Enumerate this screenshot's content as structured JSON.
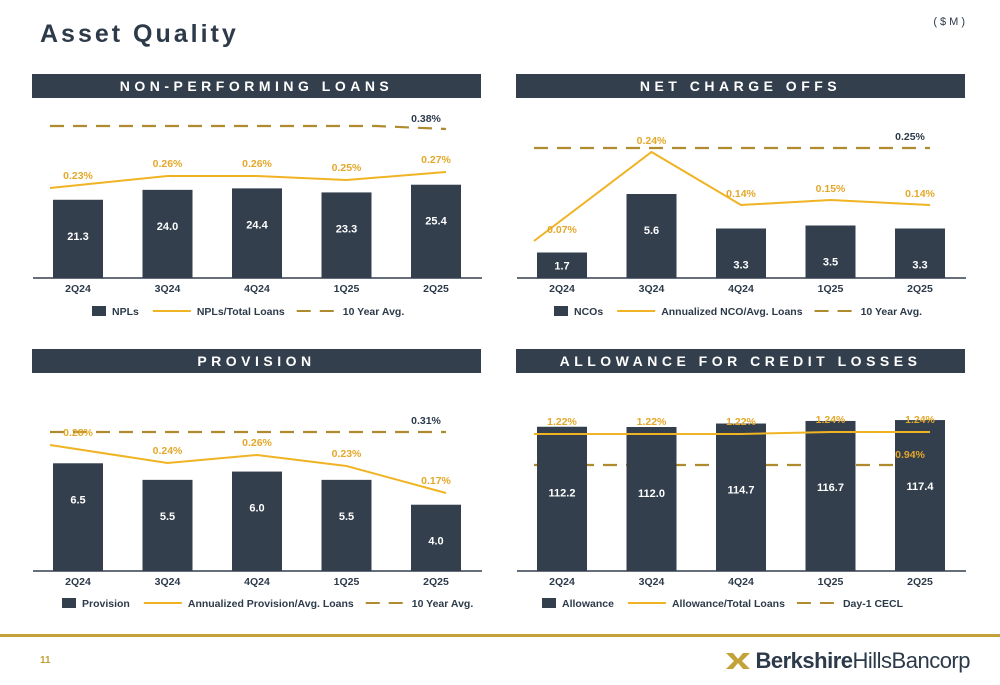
{
  "page": {
    "title": "Asset Quality",
    "units": "($M)",
    "page_number": "11",
    "logo": {
      "bold": "Berkshire",
      "regular": "HillsBancorp"
    }
  },
  "colors": {
    "bar": "#333f4d",
    "line": "#f0b323",
    "dash": "#b08a2e",
    "label_gold": "#e3a82b",
    "text": "#2c3a4a"
  },
  "chart_data": [
    {
      "id": "npl",
      "title": "NON-PERFORMING LOANS",
      "type": "bar+line",
      "categories": [
        "2Q24",
        "3Q24",
        "4Q24",
        "1Q25",
        "2Q25"
      ],
      "bars": {
        "name": "NPLs",
        "values": [
          21.3,
          24.0,
          24.4,
          23.3,
          25.4
        ]
      },
      "line": {
        "name": "NPLs/Total Loans",
        "values": [
          0.23,
          0.26,
          0.26,
          0.25,
          0.27
        ],
        "labels": [
          "0.23%",
          "0.26%",
          "0.26%",
          "0.25%",
          "0.27%"
        ]
      },
      "dashed": {
        "name": "10 Year Avg.",
        "value": 0.38,
        "label": "0.38%"
      },
      "legend": [
        "NPLs",
        "NPLs/Total Loans",
        "10 Year Avg."
      ]
    },
    {
      "id": "nco",
      "title": "NET CHARGE OFFS",
      "type": "bar+line",
      "categories": [
        "2Q24",
        "3Q24",
        "4Q24",
        "1Q25",
        "2Q25"
      ],
      "bars": {
        "name": "NCOs",
        "values": [
          1.7,
          5.6,
          3.3,
          3.5,
          3.3
        ]
      },
      "line": {
        "name": "Annualized NCO/Avg. Loans",
        "values": [
          0.07,
          0.24,
          0.14,
          0.15,
          0.14
        ],
        "labels": [
          "0.07%",
          "0.24%",
          "0.14%",
          "0.15%",
          "0.14%"
        ]
      },
      "dashed": {
        "name": "10 Year Avg.",
        "value": 0.25,
        "label": "0.25%"
      },
      "legend": [
        "NCOs",
        "Annualized NCO/Avg. Loans",
        "10 Year Avg."
      ]
    },
    {
      "id": "provision",
      "title": "PROVISION",
      "type": "bar+line",
      "categories": [
        "2Q24",
        "3Q24",
        "4Q24",
        "1Q25",
        "2Q25"
      ],
      "bars": {
        "name": "Provision",
        "values": [
          6.5,
          5.5,
          6.0,
          5.5,
          4.0
        ]
      },
      "line": {
        "name": "Annualized Provision/Avg. Loans",
        "values": [
          0.28,
          0.24,
          0.26,
          0.23,
          0.17
        ],
        "labels": [
          "0.28%",
          "0.24%",
          "0.26%",
          "0.23%",
          "0.17%"
        ]
      },
      "dashed": {
        "name": "10 Year Avg.",
        "value": 0.31,
        "label": "0.31%"
      },
      "legend": [
        "Provision",
        "Annualized Provision/Avg. Loans",
        "10 Year Avg."
      ]
    },
    {
      "id": "acl",
      "title": "ALLOWANCE FOR CREDIT LOSSES",
      "type": "bar+line",
      "categories": [
        "2Q24",
        "3Q24",
        "4Q24",
        "1Q25",
        "2Q25"
      ],
      "bars": {
        "name": "Allowance",
        "values": [
          112.2,
          112.0,
          114.7,
          116.7,
          117.4
        ]
      },
      "line": {
        "name": "Allowance/Total Loans",
        "values": [
          1.22,
          1.22,
          1.22,
          1.24,
          1.24
        ],
        "labels": [
          "1.22%",
          "1.22%",
          "1.22%",
          "1.24%",
          "1.24%"
        ]
      },
      "dashed": {
        "name": "Day-1 CECL",
        "value": 0.94,
        "label": "0.94%"
      },
      "legend": [
        "Allowance",
        "Allowance/Total Loans",
        "Day-1 CECL"
      ]
    }
  ]
}
